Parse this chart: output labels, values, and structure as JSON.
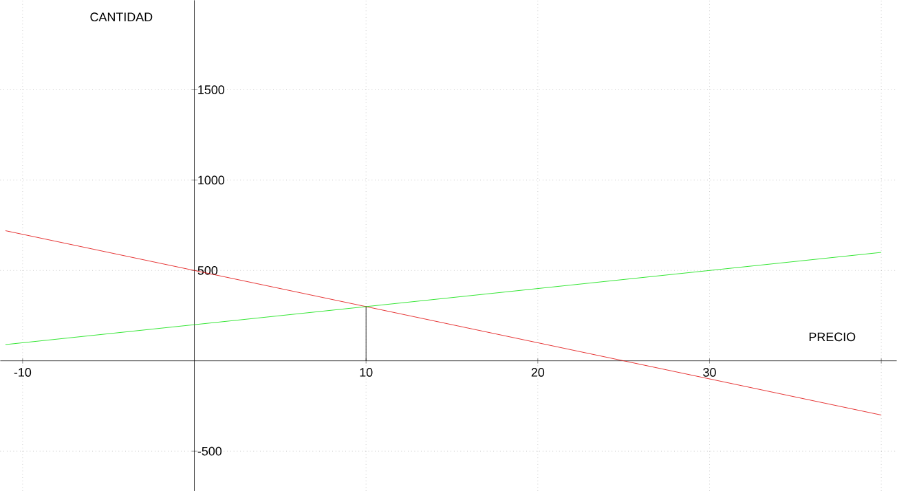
{
  "chart_data": {
    "type": "line",
    "xlabel": "PRECIO",
    "ylabel": "CANTIDAD",
    "series": [
      {
        "color": "#e00000",
        "x": [
          -11,
          0,
          25,
          40
        ],
        "values": [
          720,
          500,
          0,
          -300
        ]
      },
      {
        "color": "#00e000",
        "x": [
          -11,
          0,
          10,
          40
        ],
        "values": [
          90,
          200,
          300,
          600
        ]
      },
      {
        "color": "#000000",
        "x": [
          10,
          10
        ],
        "values": [
          300,
          0
        ]
      }
    ],
    "xlim": [
      -11.3,
      40.9
    ],
    "ylim": [
      -720,
      1995
    ],
    "xticks": [
      -10,
      {
        "value": 0,
        "label": null
      },
      10,
      20,
      30,
      {
        "value": 40,
        "label": null
      }
    ],
    "yticks": [
      -500,
      {
        "value": 0,
        "label": null
      },
      500,
      1000,
      1500
    ],
    "grid": true,
    "marker": "none",
    "line_style": "solid"
  }
}
